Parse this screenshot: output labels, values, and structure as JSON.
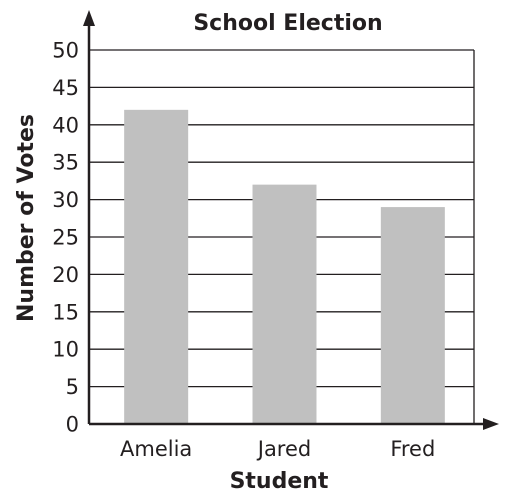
{
  "chart_data": {
    "type": "bar",
    "title": "School Election",
    "xlabel": "Student",
    "ylabel": "Number of Votes",
    "categories": [
      "Amelia",
      "Jared",
      "Fred"
    ],
    "values": [
      42,
      32,
      29
    ],
    "ylim": [
      0,
      50
    ],
    "yticks": [
      "0",
      "5",
      "10",
      "15",
      "20",
      "25",
      "30",
      "35",
      "40",
      "45",
      "50"
    ],
    "grid": true,
    "legend": "none",
    "colors": {
      "bar": "#c0c0c0",
      "axis": "#231f20",
      "grid": "#231f20"
    }
  }
}
